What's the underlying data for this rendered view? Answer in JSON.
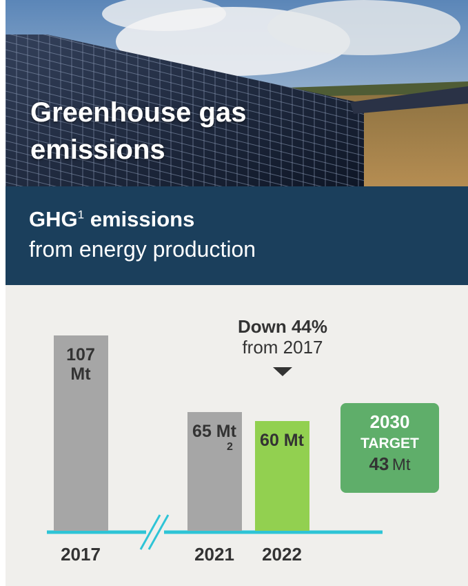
{
  "chart_data": {
    "type": "bar",
    "title": "Greenhouse gas emissions",
    "subtitle": {
      "lead": "GHG",
      "note": "1",
      "rest": "emissions",
      "line2": "from energy production"
    },
    "categories": [
      "2017",
      "2021",
      "2022"
    ],
    "values": [
      107,
      65,
      60
    ],
    "value_labels": [
      "107 Mt",
      "65 Mt",
      "60 Mt"
    ],
    "value_label_notes": [
      null,
      "2",
      null
    ],
    "colors": [
      "#a6a6a6",
      "#a6a6a6",
      "#92d050"
    ],
    "annotation": {
      "headline": "Down 44%",
      "detail": "from 2017"
    },
    "target": {
      "year": "2030",
      "label": "TARGET",
      "value": 43,
      "unit": "Mt"
    }
  }
}
